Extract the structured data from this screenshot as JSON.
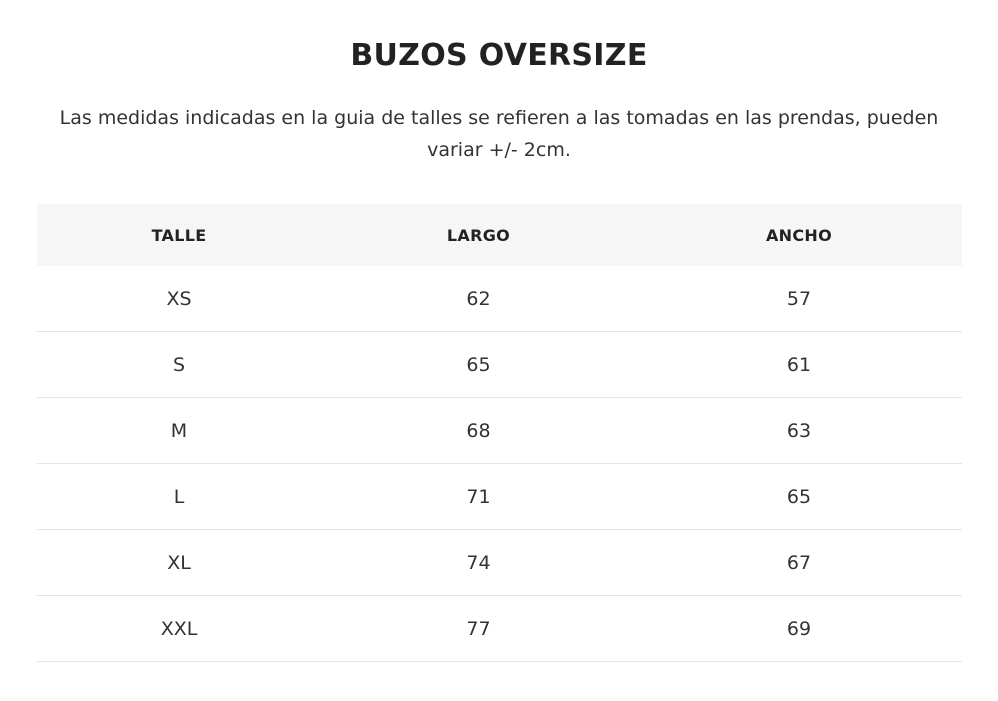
{
  "page": {
    "title": "BUZOS OVERSIZE",
    "description": "Las medidas indicadas en la guia de talles se refieren a las tomadas en las prendas, pueden variar +/- 2cm."
  },
  "table": {
    "headers": [
      "TALLE",
      "LARGO",
      "ANCHO"
    ],
    "rows": [
      [
        "XS",
        "62",
        "57"
      ],
      [
        "S",
        "65",
        "61"
      ],
      [
        "M",
        "68",
        "63"
      ],
      [
        "L",
        "71",
        "65"
      ],
      [
        "XL",
        "74",
        "67"
      ],
      [
        "XXL",
        "77",
        "69"
      ]
    ]
  },
  "colors": {
    "header_background": "#f6f6f6",
    "text": "#222222",
    "divider": "#e4e4e4"
  }
}
